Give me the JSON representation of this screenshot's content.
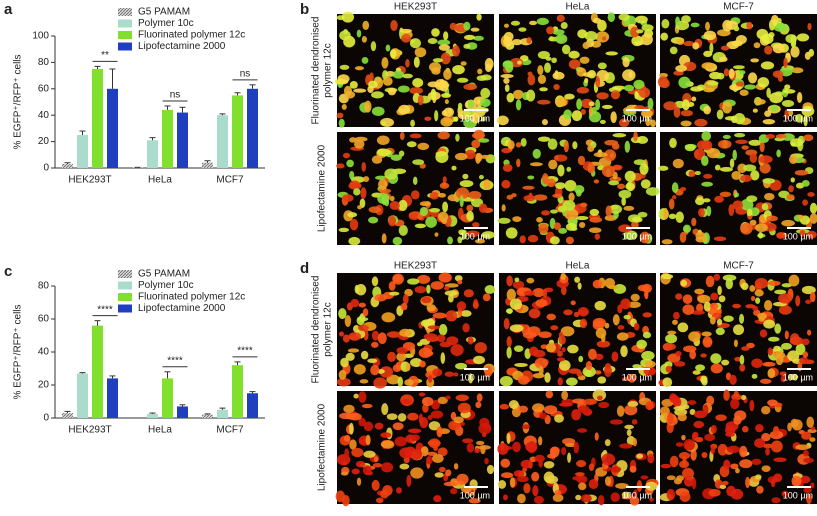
{
  "chart_data": [
    {
      "type": "bar",
      "label": "a",
      "y_label": "% EGFP⁺/RFP⁺ cells",
      "categories": [
        "HEK293T",
        "HeLa",
        "MCF7"
      ],
      "series": [
        {
          "name": "G5 PAMAM",
          "color": "#9a9a9a",
          "hatch": true,
          "values": [
            3,
            0.5,
            4
          ],
          "errors": [
            1,
            0,
            1.5
          ]
        },
        {
          "name": "Polymer 10c",
          "color": "#a9dccb",
          "values": [
            25,
            21,
            40
          ],
          "errors": [
            3,
            2,
            1
          ]
        },
        {
          "name": "Fluorinated polymer 12c",
          "color": "#80e02c",
          "values": [
            75,
            44,
            55
          ],
          "errors": [
            2,
            3,
            2
          ]
        },
        {
          "name": "Lipofectamine 2000",
          "color": "#1f3fbf",
          "values": [
            60,
            42,
            60
          ],
          "errors": [
            15,
            4,
            3
          ]
        }
      ],
      "ylim": [
        0,
        100
      ],
      "yticks": [
        0,
        20,
        40,
        60,
        80,
        100
      ],
      "grid": false,
      "annotations": [
        "**",
        "ns",
        "ns"
      ]
    },
    {
      "type": "bar",
      "label": "c",
      "y_label": "% EGFP⁺/RFP⁺ cells",
      "categories": [
        "HEK293T",
        "HeLa",
        "MCF7"
      ],
      "series": [
        {
          "name": "G5 PAMAM",
          "color": "#9a9a9a",
          "hatch": true,
          "values": [
            3,
            0,
            2
          ],
          "errors": [
            1,
            0,
            0.5
          ]
        },
        {
          "name": "Polymer 10c",
          "color": "#a9dccb",
          "values": [
            27,
            2.5,
            5
          ],
          "errors": [
            0.5,
            0.5,
            1
          ]
        },
        {
          "name": "Fluorinated polymer 12c",
          "color": "#80e02c",
          "values": [
            56,
            24,
            32
          ],
          "errors": [
            3,
            4,
            2
          ]
        },
        {
          "name": "Lipofectamine 2000",
          "color": "#1f3fbf",
          "values": [
            24,
            7,
            15
          ],
          "errors": [
            1.5,
            1,
            1
          ]
        }
      ],
      "ylim": [
        0,
        80
      ],
      "yticks": [
        0,
        20,
        40,
        60,
        80
      ],
      "grid": false,
      "annotations": [
        "****",
        "****",
        "****"
      ]
    }
  ],
  "image_panels": [
    {
      "label": "b",
      "columns": [
        "HEK293T",
        "HeLa",
        "MCF-7"
      ],
      "rows": [
        {
          "lines": [
            "Fluorinated dendronised",
            "polymer 12c"
          ]
        },
        {
          "lines": [
            "Lipofectamine 2000"
          ]
        }
      ],
      "scale_bar": "100 µm"
    },
    {
      "label": "d",
      "columns": [
        "HEK293T",
        "HeLa",
        "MCF-7"
      ],
      "rows": [
        {
          "lines": [
            "Fluorinated dendronised",
            "polymer 12c"
          ]
        },
        {
          "lines": [
            "Lipofectamine 2000"
          ]
        }
      ],
      "scale_bar": "100 µm"
    }
  ]
}
